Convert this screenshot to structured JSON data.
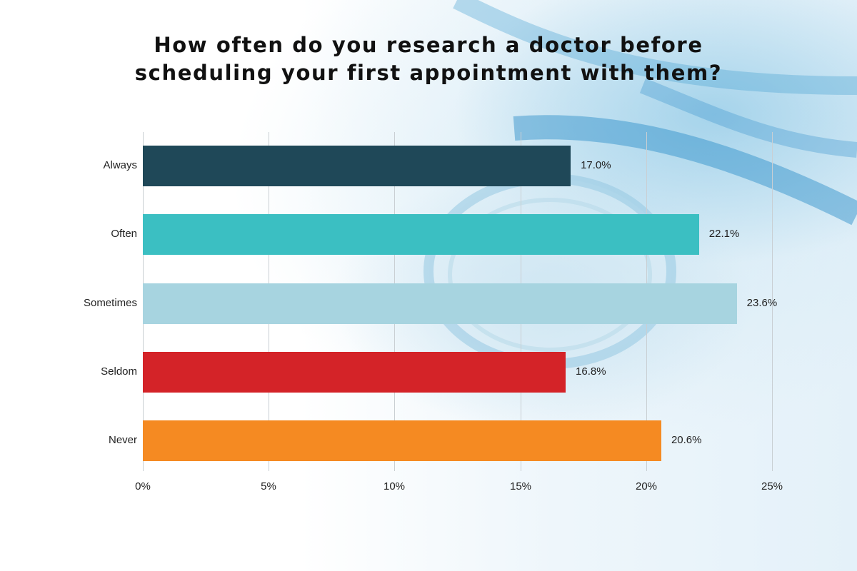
{
  "chart_data": {
    "type": "bar",
    "orientation": "horizontal",
    "title": "How often do you research a doctor before scheduling your first appointment with them?",
    "title_lines": [
      "How often do you research a doctor before",
      "scheduling your first appointment with them?"
    ],
    "categories": [
      "Always",
      "Often",
      "Sometimes",
      "Seldom",
      "Never"
    ],
    "values": [
      17.0,
      22.1,
      23.6,
      16.8,
      20.6
    ],
    "value_labels": [
      "17.0%",
      "22.1%",
      "23.6%",
      "16.8%",
      "20.6%"
    ],
    "colors": [
      "#1f4858",
      "#3bbfc2",
      "#a7d4e0",
      "#d42328",
      "#f58a22"
    ],
    "xlabel": "",
    "ylabel": "",
    "xlim": [
      0,
      25
    ],
    "x_ticks": [
      0,
      5,
      10,
      15,
      20,
      25
    ],
    "x_tick_labels": [
      "0%",
      "5%",
      "10%",
      "15%",
      "20%",
      "25%"
    ],
    "grid": "vertical",
    "legend": "none"
  }
}
